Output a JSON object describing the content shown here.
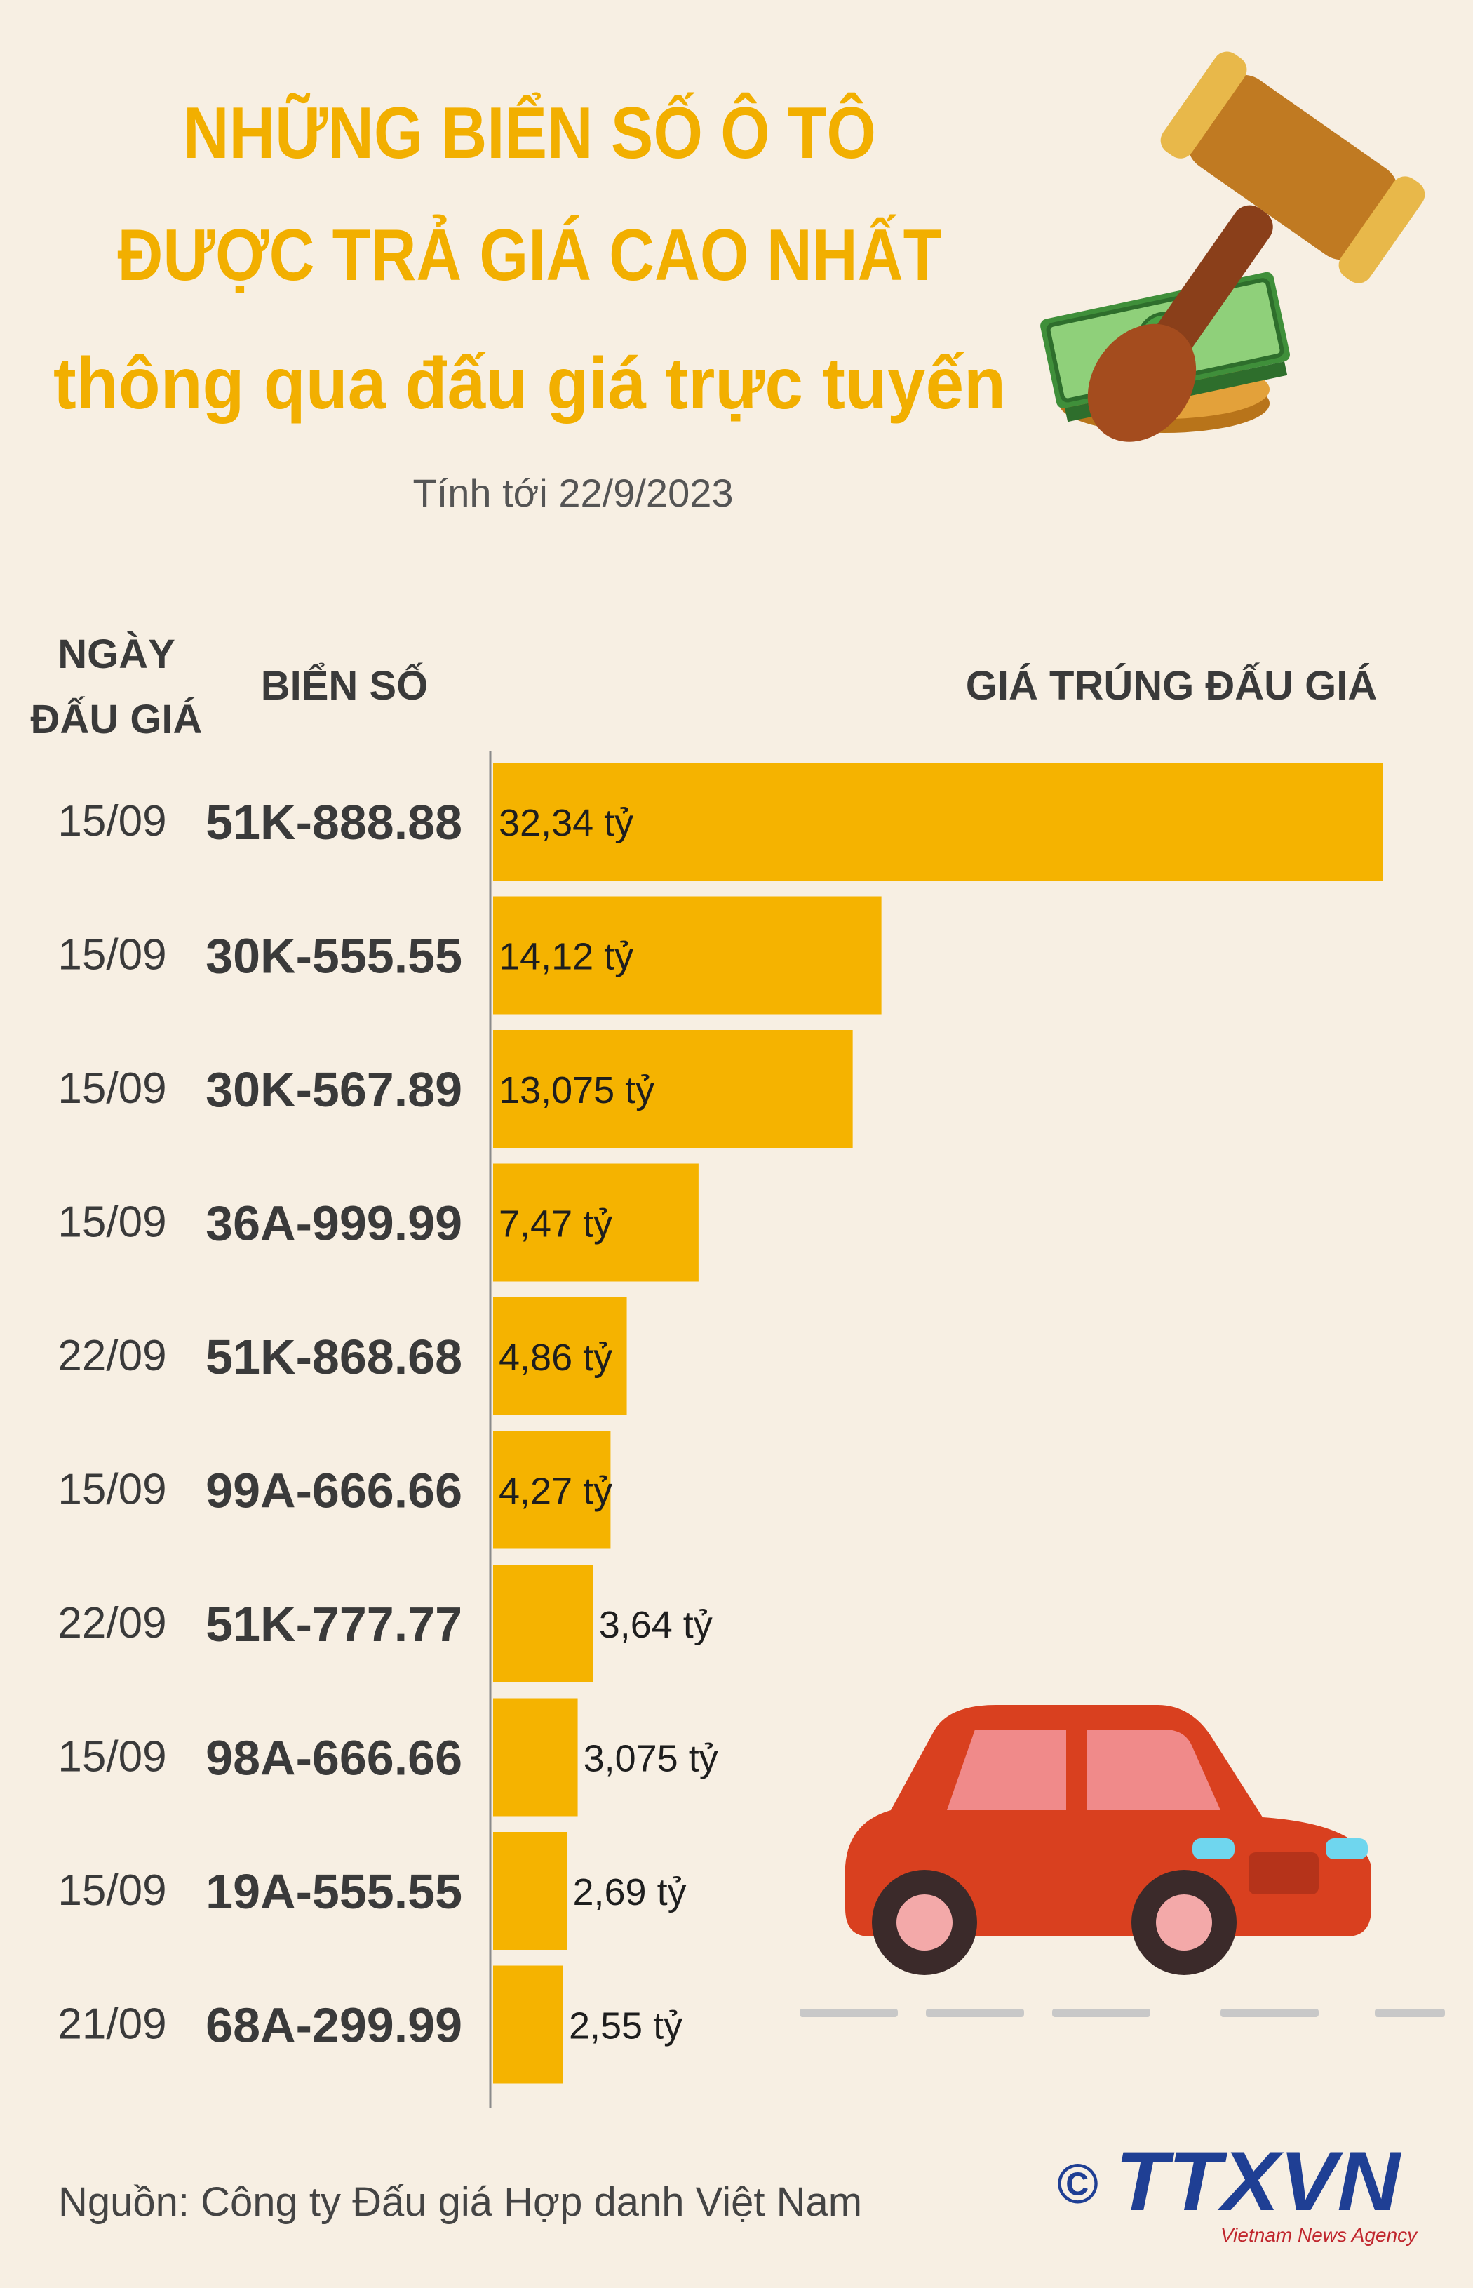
{
  "chart_data": {
    "type": "bar",
    "orientation": "horizontal",
    "title": [
      "NHỮNG BIỂN SỐ Ô TÔ",
      "ĐƯỢC TRẢ GIÁ CAO NHẤT",
      "thông qua đấu giá trực tuyến"
    ],
    "subtitle": "Tính tới 22/9/2023",
    "column_headers": {
      "date": [
        "NGÀY",
        "ĐẤU GIÁ"
      ],
      "plate": "BIỂN SỐ",
      "price": "GIÁ TRÚNG ĐẤU GIÁ"
    },
    "dates": [
      "15/09",
      "15/09",
      "15/09",
      "15/09",
      "22/09",
      "15/09",
      "22/09",
      "15/09",
      "15/09",
      "21/09"
    ],
    "categories": [
      "51K-888.88",
      "30K-555.55",
      "30K-567.89",
      "36A-999.99",
      "51K-868.68",
      "99A-666.66",
      "51K-777.77",
      "98A-666.66",
      "19A-555.55",
      "68A-299.99"
    ],
    "values": [
      32.34,
      14.12,
      13.075,
      7.47,
      4.86,
      4.27,
      3.64,
      3.075,
      2.69,
      2.55
    ],
    "value_labels": [
      "32,34 tỷ",
      "14,12 tỷ",
      "13,075 tỷ",
      "7,47 tỷ",
      "4,86 tỷ",
      "4,27 tỷ",
      "3,64 tỷ",
      "3,075 tỷ",
      "2,69 tỷ",
      "2,55 tỷ"
    ],
    "color": "#f5b300",
    "source": "Nguồn: Công ty Đấu giá Hợp danh Việt Nam"
  },
  "logo": {
    "copyright": "©",
    "name": "TTXVN",
    "tagline": "Vietnam News Agency"
  }
}
